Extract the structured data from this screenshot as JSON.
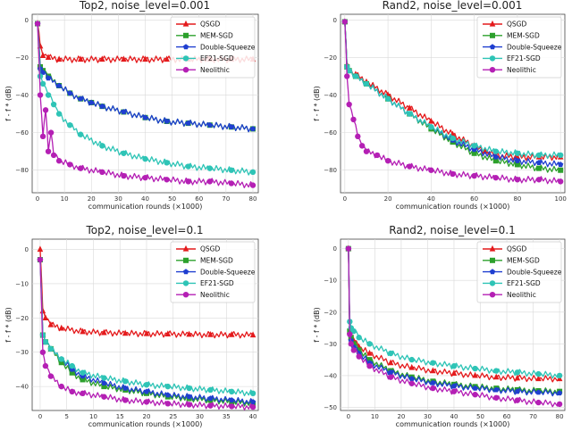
{
  "figure": {
    "colors": {
      "QSGD": "#e41a1c",
      "MEM-SGD": "#2ca02c",
      "Double-Squeeze": "#1f3fd0",
      "EF21-SGD": "#2ec4b6",
      "Neolithic": "#b41fb4"
    }
  },
  "chart_data": [
    {
      "type": "line",
      "title": "Top2, noise_level=0.001",
      "xlabel": "communication rounds (×1000)",
      "ylabel": "f - f * (dB)",
      "xlim": [
        -2,
        82
      ],
      "ylim": [
        -92,
        3
      ],
      "xticks": [
        0,
        10,
        20,
        30,
        40,
        50,
        60,
        70,
        80
      ],
      "yticks": [
        0,
        -20,
        -40,
        -60,
        -80
      ],
      "legend": "upper-right",
      "series": [
        {
          "name": "QSGD",
          "marker": "triangle",
          "x": [
            0,
            1,
            2,
            4,
            8,
            16,
            24,
            32,
            40,
            48,
            56,
            64,
            72,
            80
          ],
          "y": [
            -2,
            -14,
            -19,
            -20,
            -21,
            -21,
            -21,
            -21,
            -21,
            -21,
            -21,
            -21,
            -21,
            -21
          ]
        },
        {
          "name": "MEM-SGD",
          "marker": "square",
          "x": [
            0,
            1,
            2,
            4,
            8,
            12,
            16,
            20,
            24,
            32,
            40,
            48,
            56,
            64,
            72,
            80
          ],
          "y": [
            -2,
            -25,
            -27,
            -30,
            -35,
            -39,
            -42,
            -44,
            -46,
            -49,
            -52,
            -54,
            -55,
            -56,
            -57,
            -58
          ]
        },
        {
          "name": "Double-Squeeze",
          "marker": "pentagon",
          "x": [
            0,
            1,
            2,
            4,
            8,
            12,
            16,
            20,
            24,
            32,
            40,
            48,
            56,
            64,
            72,
            80
          ],
          "y": [
            -2,
            -26,
            -28,
            -31,
            -35,
            -39,
            -42,
            -44,
            -46,
            -49,
            -52,
            -54,
            -55,
            -56,
            -57,
            -58
          ]
        },
        {
          "name": "EF21-SGD",
          "marker": "circle",
          "x": [
            0,
            1,
            2,
            4,
            6,
            8,
            12,
            16,
            24,
            32,
            40,
            48,
            56,
            64,
            72,
            80
          ],
          "y": [
            -2,
            -30,
            -34,
            -40,
            -45,
            -50,
            -56,
            -61,
            -67,
            -71,
            -74,
            -76,
            -78,
            -79,
            -80,
            -81
          ]
        },
        {
          "name": "Neolithic",
          "marker": "circle",
          "x": [
            0,
            1,
            2,
            3,
            4,
            5,
            6,
            8,
            12,
            16,
            24,
            32,
            40,
            48,
            56,
            64,
            72,
            80
          ],
          "y": [
            -2,
            -40,
            -62,
            -48,
            -70,
            -60,
            -72,
            -75,
            -77,
            -79,
            -81,
            -83,
            -84,
            -85,
            -86,
            -86,
            -87,
            -88
          ]
        }
      ]
    },
    {
      "type": "line",
      "title": "Rand2, noise_level=0.001",
      "xlabel": "communication rounds (×1000)",
      "ylabel": "f - f * (dB)",
      "xlim": [
        -2,
        102
      ],
      "ylim": [
        -92,
        3
      ],
      "xticks": [
        0,
        20,
        40,
        60,
        80,
        100
      ],
      "yticks": [
        0,
        -20,
        -40,
        -60,
        -80
      ],
      "legend": "upper-right",
      "series": [
        {
          "name": "QSGD",
          "marker": "triangle",
          "x": [
            0,
            1,
            2,
            5,
            10,
            20,
            30,
            40,
            50,
            60,
            65,
            70,
            80,
            90,
            100
          ],
          "y": [
            -1,
            -24,
            -27,
            -29,
            -33,
            -40,
            -47,
            -54,
            -61,
            -67,
            -70,
            -72,
            -73,
            -73,
            -73
          ]
        },
        {
          "name": "MEM-SGD",
          "marker": "square",
          "x": [
            0,
            1,
            2,
            5,
            10,
            20,
            30,
            40,
            50,
            60,
            70,
            80,
            90,
            100
          ],
          "y": [
            -1,
            -25,
            -27,
            -30,
            -34,
            -42,
            -50,
            -58,
            -65,
            -71,
            -75,
            -77,
            -79,
            -80
          ]
        },
        {
          "name": "Double-Squeeze",
          "marker": "pentagon",
          "x": [
            0,
            1,
            2,
            5,
            10,
            20,
            30,
            40,
            50,
            60,
            70,
            80,
            90,
            100
          ],
          "y": [
            -1,
            -25,
            -27,
            -30,
            -34,
            -42,
            -50,
            -57,
            -64,
            -69,
            -73,
            -75,
            -76,
            -77
          ]
        },
        {
          "name": "EF21-SGD",
          "marker": "circle",
          "x": [
            0,
            1,
            2,
            5,
            10,
            20,
            30,
            40,
            50,
            60,
            70,
            80,
            90,
            100
          ],
          "y": [
            -1,
            -25,
            -27,
            -30,
            -34,
            -42,
            -50,
            -57,
            -63,
            -67,
            -70,
            -71,
            -72,
            -72
          ]
        },
        {
          "name": "Neolithic",
          "marker": "circle",
          "x": [
            0,
            1,
            2,
            4,
            6,
            8,
            10,
            15,
            20,
            30,
            40,
            50,
            60,
            70,
            80,
            90,
            100
          ],
          "y": [
            -1,
            -30,
            -45,
            -53,
            -62,
            -67,
            -70,
            -72,
            -75,
            -78,
            -80,
            -82,
            -83,
            -84,
            -85,
            -85,
            -86
          ]
        }
      ]
    },
    {
      "type": "line",
      "title": "Top2, noise_level=0.1",
      "xlabel": "communication rounds (×1000)",
      "ylabel": "f - f * (dB)",
      "xlim": [
        -1.5,
        41
      ],
      "ylim": [
        -47,
        3
      ],
      "xticks": [
        0,
        5,
        10,
        15,
        20,
        25,
        30,
        35,
        40
      ],
      "yticks": [
        0,
        -10,
        -20,
        -30,
        -40
      ],
      "legend": "upper-right",
      "series": [
        {
          "name": "QSGD",
          "marker": "triangle",
          "x": [
            0,
            0.5,
            1,
            2,
            4,
            8,
            12,
            16,
            20,
            24,
            28,
            32,
            36,
            40
          ],
          "y": [
            0,
            -18,
            -20,
            -22,
            -23,
            -24,
            -24.3,
            -24.5,
            -24.6,
            -24.7,
            -24.8,
            -24.9,
            -24.9,
            -25
          ]
        },
        {
          "name": "MEM-SGD",
          "marker": "square",
          "x": [
            0,
            0.5,
            1,
            2,
            4,
            6,
            8,
            12,
            16,
            20,
            24,
            28,
            32,
            36,
            40
          ],
          "y": [
            -3,
            -25,
            -27,
            -29,
            -33,
            -36,
            -38,
            -40,
            -41,
            -42,
            -43,
            -43.5,
            -44,
            -44.5,
            -45
          ]
        },
        {
          "name": "Double-Squeeze",
          "marker": "pentagon",
          "x": [
            0,
            0.5,
            1,
            2,
            4,
            6,
            8,
            12,
            16,
            20,
            24,
            28,
            32,
            36,
            40
          ],
          "y": [
            -3,
            -25,
            -27,
            -29,
            -32,
            -35,
            -37,
            -39,
            -40.5,
            -41.5,
            -42.5,
            -43,
            -43.5,
            -44,
            -44.5
          ]
        },
        {
          "name": "EF21-SGD",
          "marker": "circle",
          "x": [
            0,
            0.5,
            1,
            2,
            4,
            6,
            8,
            12,
            16,
            20,
            24,
            28,
            32,
            36,
            40
          ],
          "y": [
            -3,
            -25,
            -27,
            -29,
            -32,
            -34,
            -36,
            -37.5,
            -38.5,
            -39.5,
            -40,
            -40.5,
            -41,
            -41.5,
            -42
          ]
        },
        {
          "name": "Neolithic",
          "marker": "circle",
          "x": [
            0,
            0.5,
            1,
            2,
            4,
            6,
            8,
            12,
            16,
            20,
            24,
            28,
            32,
            36,
            40
          ],
          "y": [
            -3,
            -30,
            -34,
            -37,
            -40,
            -41.5,
            -42,
            -43,
            -44,
            -44.5,
            -45,
            -45.3,
            -45.6,
            -45.8,
            -46
          ]
        }
      ]
    },
    {
      "type": "line",
      "title": "Rand2, noise_level=0.1",
      "xlabel": "communication rounds (×1000)",
      "ylabel": "f - f * (dB)",
      "xlim": [
        -3,
        82
      ],
      "ylim": [
        -51,
        3
      ],
      "xticks": [
        0,
        10,
        20,
        30,
        40,
        50,
        60,
        70,
        80
      ],
      "yticks": [
        0,
        -10,
        -20,
        -30,
        -40,
        -50
      ],
      "legend": "upper-right",
      "series": [
        {
          "name": "QSGD",
          "marker": "triangle",
          "x": [
            0,
            0.5,
            1,
            2,
            4,
            8,
            16,
            24,
            32,
            40,
            48,
            56,
            64,
            72,
            80
          ],
          "y": [
            0,
            -26,
            -28,
            -29,
            -31,
            -33,
            -36,
            -37.5,
            -38.5,
            -39.3,
            -40,
            -40.5,
            -40.8,
            -41,
            -41
          ]
        },
        {
          "name": "MEM-SGD",
          "marker": "square",
          "x": [
            0,
            0.5,
            1,
            2,
            4,
            8,
            16,
            24,
            32,
            40,
            48,
            56,
            64,
            72,
            80
          ],
          "y": [
            0,
            -26,
            -28,
            -30,
            -32,
            -35,
            -38.5,
            -40.5,
            -41.8,
            -42.8,
            -43.5,
            -44,
            -44.5,
            -44.8,
            -45
          ]
        },
        {
          "name": "Double-Squeeze",
          "marker": "pentagon",
          "x": [
            0,
            0.5,
            1,
            2,
            4,
            8,
            16,
            24,
            32,
            40,
            48,
            56,
            64,
            72,
            80
          ],
          "y": [
            0,
            -27,
            -29,
            -31,
            -33,
            -36,
            -39,
            -41,
            -42.3,
            -43.3,
            -44,
            -44.5,
            -45,
            -45.3,
            -45.5
          ]
        },
        {
          "name": "EF21-SGD",
          "marker": "circle",
          "x": [
            0,
            0.5,
            1,
            2,
            4,
            8,
            16,
            24,
            32,
            40,
            48,
            56,
            64,
            72,
            80
          ],
          "y": [
            0,
            -23,
            -25,
            -26,
            -28,
            -30,
            -33,
            -35,
            -36,
            -37,
            -37.8,
            -38.5,
            -39,
            -39.5,
            -40
          ]
        },
        {
          "name": "Neolithic",
          "marker": "circle",
          "x": [
            0,
            0.5,
            1,
            2,
            4,
            8,
            16,
            24,
            32,
            40,
            48,
            56,
            64,
            72,
            80
          ],
          "y": [
            0,
            -27,
            -30,
            -32,
            -34,
            -37,
            -40.5,
            -42.5,
            -44,
            -45,
            -46,
            -47,
            -47.8,
            -48.5,
            -49
          ]
        }
      ]
    }
  ]
}
